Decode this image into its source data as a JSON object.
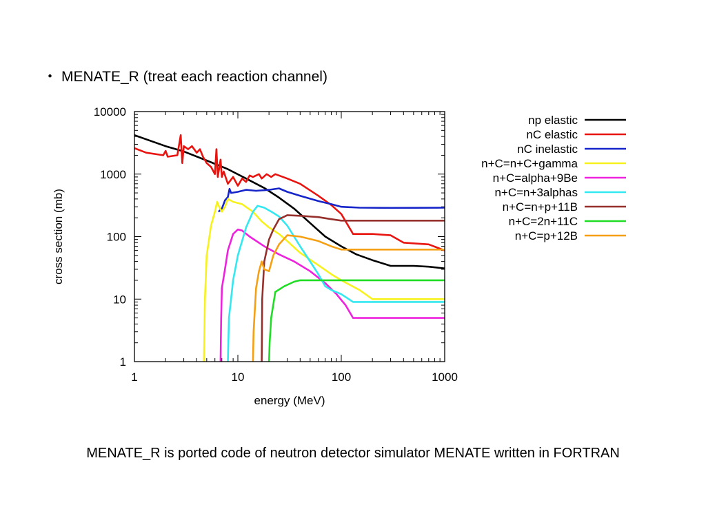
{
  "heading": {
    "bullet": "・",
    "text": "MENATE_R (treat each reaction channel)"
  },
  "caption": "MENATE_R is ported code of neutron detector simulator MENATE written in FORTRAN",
  "chart_data": {
    "type": "line",
    "xscale": "log",
    "yscale": "log",
    "xlim": [
      1,
      1000
    ],
    "ylim": [
      1,
      10000
    ],
    "xlabel": "energy (MeV)",
    "ylabel": "cross section (mb)",
    "x_ticks": [
      "1",
      "10",
      "100",
      "1000"
    ],
    "y_ticks": [
      "1",
      "10",
      "100",
      "1000",
      "10000"
    ],
    "legend_position": "right-outside",
    "series": [
      {
        "name": "np elastic",
        "color": "#000000",
        "points": [
          [
            1,
            4200
          ],
          [
            2,
            2800
          ],
          [
            3,
            2300
          ],
          [
            5,
            1650
          ],
          [
            8,
            1200
          ],
          [
            12,
            850
          ],
          [
            18,
            600
          ],
          [
            25,
            420
          ],
          [
            35,
            280
          ],
          [
            50,
            165
          ],
          [
            70,
            100
          ],
          [
            100,
            70
          ],
          [
            140,
            52
          ],
          [
            200,
            42
          ],
          [
            300,
            34
          ],
          [
            500,
            34
          ],
          [
            700,
            33
          ],
          [
            1000,
            31
          ]
        ]
      },
      {
        "name": "nC elastic",
        "color": "#e8140f",
        "points": [
          [
            1,
            2600
          ],
          [
            1.3,
            2200
          ],
          [
            1.9,
            2000
          ],
          [
            2,
            2350
          ],
          [
            2.1,
            1900
          ],
          [
            2.6,
            2000
          ],
          [
            2.8,
            4200
          ],
          [
            2.9,
            1500
          ],
          [
            3,
            2800
          ],
          [
            3.3,
            2500
          ],
          [
            3.6,
            2800
          ],
          [
            4,
            2200
          ],
          [
            4.3,
            2500
          ],
          [
            4.6,
            1900
          ],
          [
            5,
            1500
          ],
          [
            5.5,
            1300
          ],
          [
            6,
            1000
          ],
          [
            6.2,
            2500
          ],
          [
            6.4,
            900
          ],
          [
            6.8,
            1700
          ],
          [
            7,
            900
          ],
          [
            7.3,
            1100
          ],
          [
            8,
            700
          ],
          [
            9,
            900
          ],
          [
            10,
            650
          ],
          [
            11,
            850
          ],
          [
            12,
            750
          ],
          [
            13,
            950
          ],
          [
            14,
            900
          ],
          [
            16,
            1000
          ],
          [
            17,
            850
          ],
          [
            19,
            1000
          ],
          [
            21,
            900
          ],
          [
            23,
            1000
          ],
          [
            25,
            950
          ],
          [
            30,
            850
          ],
          [
            40,
            700
          ],
          [
            60,
            450
          ],
          [
            80,
            320
          ],
          [
            100,
            230
          ],
          [
            130,
            110
          ],
          [
            200,
            110
          ],
          [
            300,
            105
          ],
          [
            400,
            80
          ],
          [
            700,
            75
          ],
          [
            1000,
            60
          ]
        ]
      },
      {
        "name": "nC inelastic",
        "color": "#1625c9",
        "points": [
          [
            6.5,
            250
          ],
          [
            7,
            280
          ],
          [
            7.5,
            380
          ],
          [
            8,
            430
          ],
          [
            8.3,
            580
          ],
          [
            8.6,
            500
          ],
          [
            10,
            520
          ],
          [
            12,
            560
          ],
          [
            15,
            540
          ],
          [
            20,
            560
          ],
          [
            25,
            590
          ],
          [
            30,
            520
          ],
          [
            40,
            450
          ],
          [
            60,
            370
          ],
          [
            80,
            330
          ],
          [
            100,
            300
          ],
          [
            150,
            290
          ],
          [
            300,
            288
          ],
          [
            1000,
            290
          ]
        ]
      },
      {
        "name": "n+C=n+C+gamma",
        "color": "#f7f21d",
        "points": [
          [
            4.7,
            1
          ],
          [
            4.8,
            10
          ],
          [
            5,
            50
          ],
          [
            5.5,
            150
          ],
          [
            6,
            250
          ],
          [
            6.3,
            360
          ],
          [
            6.6,
            300
          ],
          [
            7,
            250
          ],
          [
            7.5,
            300
          ],
          [
            8,
            400
          ],
          [
            9,
            360
          ],
          [
            11,
            330
          ],
          [
            14,
            250
          ],
          [
            17,
            175
          ],
          [
            20,
            140
          ],
          [
            25,
            110
          ],
          [
            30,
            85
          ],
          [
            40,
            55
          ],
          [
            60,
            35
          ],
          [
            80,
            25
          ],
          [
            100,
            20
          ],
          [
            150,
            14
          ],
          [
            200,
            10
          ],
          [
            1000,
            10
          ]
        ]
      },
      {
        "name": "n+C=alpha+9Be",
        "color": "#ee22dd",
        "points": [
          [
            6.8,
            1
          ],
          [
            6.9,
            5
          ],
          [
            7,
            15
          ],
          [
            7.5,
            30
          ],
          [
            8,
            60
          ],
          [
            9,
            110
          ],
          [
            10,
            130
          ],
          [
            11,
            125
          ],
          [
            13,
            100
          ],
          [
            18,
            70
          ],
          [
            25,
            52
          ],
          [
            35,
            40
          ],
          [
            50,
            28
          ],
          [
            70,
            18
          ],
          [
            90,
            12
          ],
          [
            110,
            8
          ],
          [
            130,
            5
          ],
          [
            1000,
            5
          ]
        ]
      },
      {
        "name": "n+C=n+3alphas",
        "color": "#33e8f0",
        "points": [
          [
            8,
            1
          ],
          [
            8.2,
            5
          ],
          [
            9,
            20
          ],
          [
            10,
            50
          ],
          [
            12,
            140
          ],
          [
            14,
            250
          ],
          [
            15.5,
            310
          ],
          [
            18,
            290
          ],
          [
            22,
            240
          ],
          [
            25,
            210
          ],
          [
            30,
            150
          ],
          [
            40,
            70
          ],
          [
            50,
            40
          ],
          [
            60,
            25
          ],
          [
            70,
            16
          ],
          [
            80,
            14
          ],
          [
            100,
            12
          ],
          [
            130,
            9
          ],
          [
            200,
            9
          ],
          [
            1000,
            9
          ]
        ]
      },
      {
        "name": "n+C=n+p+11B",
        "color": "#96302c",
        "points": [
          [
            17,
            1
          ],
          [
            17.2,
            10
          ],
          [
            18,
            40
          ],
          [
            20,
            90
          ],
          [
            22,
            130
          ],
          [
            25,
            190
          ],
          [
            30,
            220
          ],
          [
            40,
            215
          ],
          [
            60,
            205
          ],
          [
            80,
            190
          ],
          [
            100,
            180
          ],
          [
            1000,
            180
          ]
        ]
      },
      {
        "name": "n+C=2n+11C",
        "color": "#1fdd25",
        "points": [
          [
            20,
            1
          ],
          [
            20.3,
            2
          ],
          [
            21,
            5
          ],
          [
            23,
            13
          ],
          [
            28,
            16
          ],
          [
            35,
            19
          ],
          [
            40,
            20
          ],
          [
            1000,
            20
          ]
        ]
      },
      {
        "name": "n+C=p+12B",
        "color": "#f5a014",
        "points": [
          [
            14,
            1
          ],
          [
            14.2,
            3
          ],
          [
            15,
            15
          ],
          [
            16,
            28
          ],
          [
            17,
            40
          ],
          [
            18,
            30
          ],
          [
            20,
            28
          ],
          [
            22,
            50
          ],
          [
            25,
            75
          ],
          [
            30,
            105
          ],
          [
            40,
            100
          ],
          [
            60,
            85
          ],
          [
            80,
            70
          ],
          [
            100,
            62
          ],
          [
            150,
            62
          ],
          [
            1000,
            62
          ]
        ]
      }
    ]
  }
}
